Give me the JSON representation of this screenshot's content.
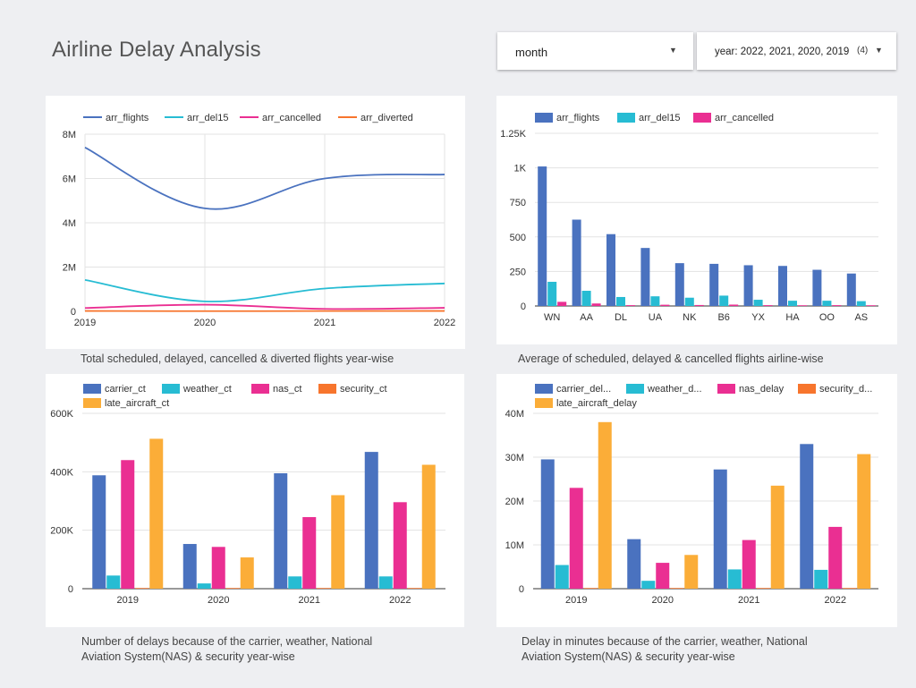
{
  "page": {
    "title": "Airline Delay Analysis"
  },
  "filters": {
    "dimension": {
      "value": "month"
    },
    "year": {
      "value": "year: 2022, 2021, 2020, 2019",
      "count": "(4)"
    }
  },
  "colors": {
    "blue": "#4a72bf",
    "cyan": "#27bcd3",
    "pink": "#ea2f92",
    "orange": "#f7752d",
    "yellow": "#fbad38",
    "grid": "#e3e3e3",
    "axis": "#333333"
  },
  "captions": {
    "c1": "Total scheduled, delayed, cancelled & diverted flights year-wise",
    "c2": "Average of scheduled, delayed & cancelled flights airline-wise",
    "c3": [
      "Number of delays because of the carrier, weather, National",
      "Aviation System(NAS) & security year-wise"
    ],
    "c4": [
      "Delay in minutes because of the carrier, weather, National",
      "Aviation System(NAS) & security year-wise"
    ]
  },
  "chart_data": [
    {
      "id": "c1",
      "type": "line",
      "categories": [
        "2019",
        "2020",
        "2021",
        "2022"
      ],
      "ylim": [
        0,
        8000000
      ],
      "yticks": [
        0,
        2000000,
        4000000,
        6000000,
        8000000
      ],
      "ytick_labels": [
        "0",
        "2M",
        "4M",
        "6M",
        "8M"
      ],
      "grid": true,
      "legend": "top",
      "series": [
        {
          "name": "arr_flights",
          "color": "#4a72bf",
          "values": [
            7400000,
            4650000,
            6000000,
            6180000
          ]
        },
        {
          "name": "arr_del15",
          "color": "#27bcd3",
          "values": [
            1420000,
            450000,
            1030000,
            1260000
          ]
        },
        {
          "name": "arr_cancelled",
          "color": "#ea2f92",
          "values": [
            150000,
            300000,
            110000,
            160000
          ]
        },
        {
          "name": "arr_diverted",
          "color": "#f7752d",
          "values": [
            18000,
            9000,
            14000,
            17000
          ]
        }
      ]
    },
    {
      "id": "c2",
      "type": "bar",
      "categories": [
        "WN",
        "AA",
        "DL",
        "UA",
        "NK",
        "B6",
        "YX",
        "HA",
        "OO",
        "AS"
      ],
      "ylim": [
        0,
        1250
      ],
      "yticks": [
        0,
        250,
        500,
        750,
        1000,
        1250
      ],
      "ytick_labels": [
        "0",
        "250",
        "500",
        "750",
        "1K",
        "1.25K"
      ],
      "grid": true,
      "legend": "top-left",
      "series": [
        {
          "name": "arr_flights",
          "color": "#4a72bf",
          "values": [
            1010,
            625,
            520,
            420,
            310,
            305,
            295,
            290,
            262,
            235
          ]
        },
        {
          "name": "arr_del15",
          "color": "#27bcd3",
          "values": [
            175,
            110,
            65,
            70,
            60,
            75,
            45,
            38,
            38,
            35
          ]
        },
        {
          "name": "arr_cancelled",
          "color": "#ea2f92",
          "values": [
            30,
            18,
            6,
            9,
            7,
            10,
            6,
            3,
            6,
            4
          ]
        }
      ]
    },
    {
      "id": "c3",
      "type": "bar",
      "categories": [
        "2019",
        "2020",
        "2021",
        "2022"
      ],
      "ylim": [
        0,
        600000
      ],
      "yticks": [
        0,
        200000,
        400000,
        600000
      ],
      "ytick_labels": [
        "0",
        "200K",
        "400K",
        "600K"
      ],
      "grid": true,
      "legend": "top-left",
      "series": [
        {
          "name": "carrier_ct",
          "color": "#4a72bf",
          "values": [
            388000,
            153000,
            395000,
            468000
          ]
        },
        {
          "name": "weather_ct",
          "color": "#27bcd3",
          "values": [
            45000,
            18000,
            42000,
            42000
          ]
        },
        {
          "name": "nas_ct",
          "color": "#ea2f92",
          "values": [
            440000,
            143000,
            245000,
            296000
          ]
        },
        {
          "name": "security_ct",
          "color": "#f7752d",
          "values": [
            2000,
            1000,
            2000,
            2000
          ]
        },
        {
          "name": "late_aircraft_ct",
          "color": "#fbad38",
          "values": [
            513000,
            107000,
            320000,
            424000
          ]
        }
      ]
    },
    {
      "id": "c4",
      "type": "bar",
      "categories": [
        "2019",
        "2020",
        "2021",
        "2022"
      ],
      "ylim": [
        0,
        40000000
      ],
      "yticks": [
        0,
        10000000,
        20000000,
        30000000,
        40000000
      ],
      "ytick_labels": [
        "0",
        "10M",
        "20M",
        "30M",
        "40M"
      ],
      "grid": true,
      "legend": "top-left",
      "series": [
        {
          "name": "carrier_delay",
          "legend_label": "carrier_del...",
          "color": "#4a72bf",
          "values": [
            29500000,
            11300000,
            27200000,
            33000000
          ]
        },
        {
          "name": "weather_delay",
          "legend_label": "weather_d...",
          "color": "#27bcd3",
          "values": [
            5400000,
            1800000,
            4400000,
            4300000
          ]
        },
        {
          "name": "nas_delay",
          "legend_label": "nas_delay",
          "color": "#ea2f92",
          "values": [
            23000000,
            5900000,
            11100000,
            14100000
          ]
        },
        {
          "name": "security_delay",
          "legend_label": "security_d...",
          "color": "#f7752d",
          "values": [
            100000,
            40000,
            90000,
            110000
          ]
        },
        {
          "name": "late_aircraft_delay",
          "legend_label": "late_aircraft_delay",
          "color": "#fbad38",
          "values": [
            38000000,
            7700000,
            23500000,
            30700000
          ]
        }
      ]
    }
  ]
}
